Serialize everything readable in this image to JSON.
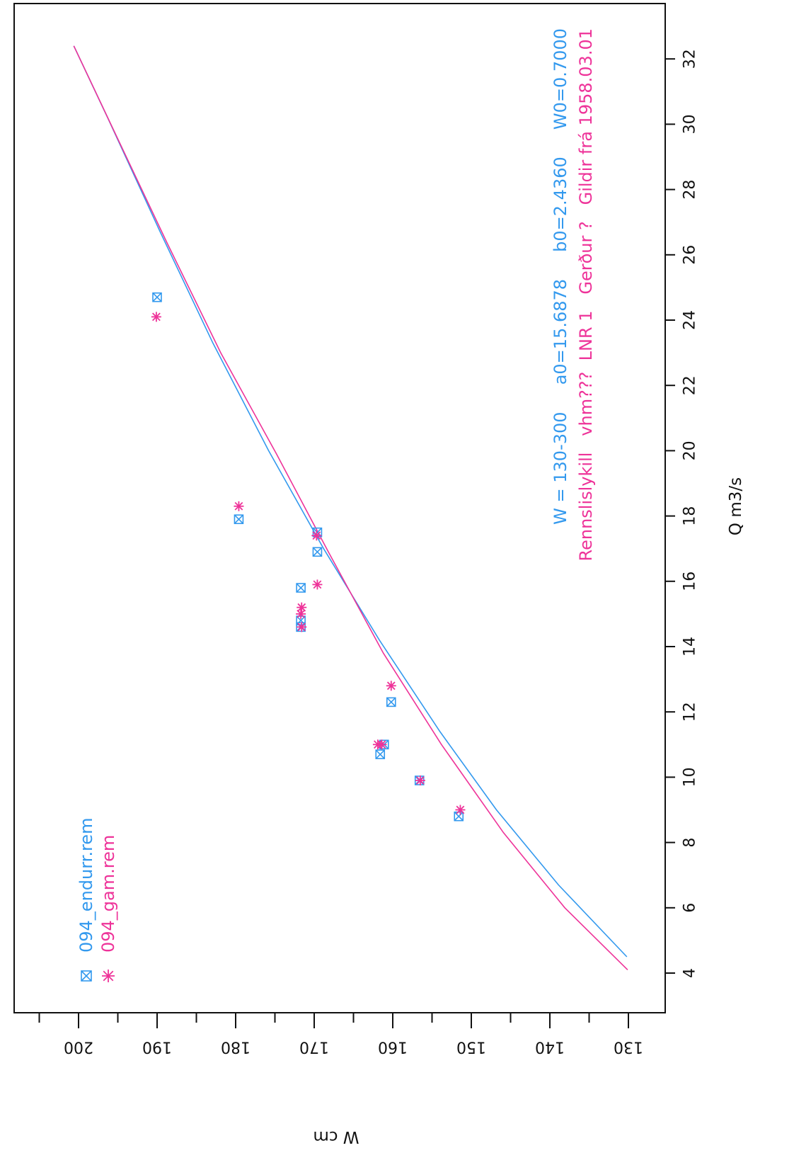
{
  "chart_data": {
    "type": "scatter",
    "xlabel": "Q m3/s",
    "ylabel": "W cm",
    "xlim": [
      3,
      34
    ],
    "ylim": [
      129,
      208
    ],
    "x_ticks": [
      4,
      6,
      8,
      10,
      12,
      14,
      16,
      18,
      20,
      22,
      24,
      26,
      28,
      30,
      32
    ],
    "y_ticks": [
      130,
      140,
      150,
      160,
      170,
      180,
      190,
      200
    ],
    "y_minor_ticks": [
      135,
      145,
      155,
      165,
      175,
      185,
      195,
      205
    ],
    "grid": false,
    "orientation": "rotated-90-clockwise",
    "info": {
      "line1": "W = 130-300     a0=15.6878     b0=2.4360     W0=0.7000",
      "line2": "Rennslislykill   vhm???  LNR 1   Gerður ?   Gildir frá 1958.03.01"
    },
    "series": [
      {
        "name": "094_endurr.rem",
        "color": "#3399ee",
        "marker": "boxed-x",
        "points": [
          {
            "x": 8.8,
            "y": 151.6
          },
          {
            "x": 9.9,
            "y": 156.6
          },
          {
            "x": 10.7,
            "y": 161.6
          },
          {
            "x": 11.0,
            "y": 161.1
          },
          {
            "x": 12.3,
            "y": 160.2
          },
          {
            "x": 14.6,
            "y": 171.7
          },
          {
            "x": 14.8,
            "y": 171.7
          },
          {
            "x": 15.8,
            "y": 171.7
          },
          {
            "x": 16.9,
            "y": 169.6
          },
          {
            "x": 17.5,
            "y": 169.6
          },
          {
            "x": 17.9,
            "y": 179.6
          },
          {
            "x": 24.7,
            "y": 190.0
          }
        ],
        "curve": [
          {
            "x": 4.5,
            "y": 130.2
          },
          {
            "x": 6.7,
            "y": 138.9
          },
          {
            "x": 9.0,
            "y": 146.8
          },
          {
            "x": 11.4,
            "y": 154.0
          },
          {
            "x": 14.2,
            "y": 161.7
          },
          {
            "x": 17.0,
            "y": 168.8
          },
          {
            "x": 20.0,
            "y": 175.8
          },
          {
            "x": 23.3,
            "y": 182.9
          },
          {
            "x": 26.7,
            "y": 189.6
          },
          {
            "x": 30.2,
            "y": 196.3
          },
          {
            "x": 32.4,
            "y": 200.6
          }
        ]
      },
      {
        "name": "094_gam.rem",
        "color": "#ee3399",
        "marker": "asterisk",
        "points": [
          {
            "x": 9.0,
            "y": 151.4
          },
          {
            "x": 9.9,
            "y": 156.5
          },
          {
            "x": 11.0,
            "y": 161.4
          },
          {
            "x": 11.0,
            "y": 161.9
          },
          {
            "x": 12.8,
            "y": 160.2
          },
          {
            "x": 14.6,
            "y": 171.6
          },
          {
            "x": 15.0,
            "y": 171.7
          },
          {
            "x": 15.2,
            "y": 171.6
          },
          {
            "x": 15.9,
            "y": 169.6
          },
          {
            "x": 17.4,
            "y": 169.7
          },
          {
            "x": 18.3,
            "y": 179.6
          },
          {
            "x": 24.1,
            "y": 190.1
          }
        ],
        "curve": [
          {
            "x": 4.1,
            "y": 130.1
          },
          {
            "x": 6.0,
            "y": 138.1
          },
          {
            "x": 8.3,
            "y": 145.9
          },
          {
            "x": 11.0,
            "y": 153.8
          },
          {
            "x": 13.8,
            "y": 161.2
          },
          {
            "x": 16.9,
            "y": 168.2
          },
          {
            "x": 19.9,
            "y": 174.8
          },
          {
            "x": 23.0,
            "y": 181.9
          },
          {
            "x": 26.4,
            "y": 188.8
          },
          {
            "x": 29.8,
            "y": 195.5
          },
          {
            "x": 32.4,
            "y": 200.6
          }
        ]
      }
    ]
  }
}
